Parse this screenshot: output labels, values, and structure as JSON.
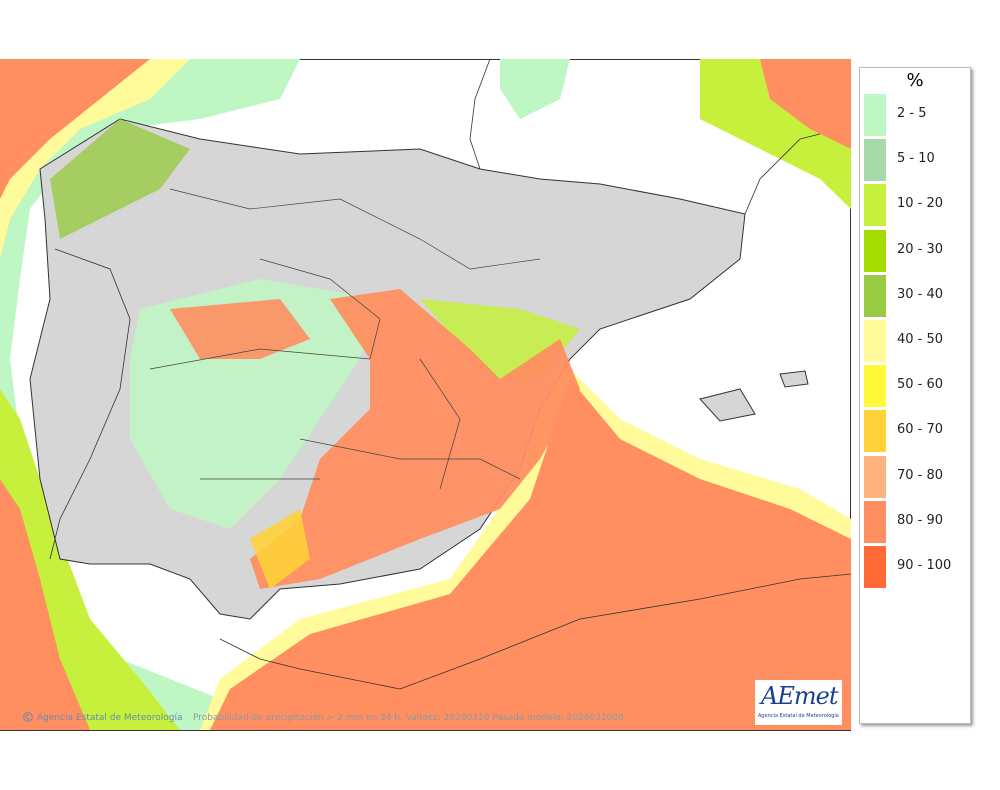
{
  "legend": {
    "title": "%",
    "items": [
      {
        "label": "2 - 5",
        "color": "#bff7c4"
      },
      {
        "label": "5 - 10",
        "color": "#a7d9a9"
      },
      {
        "label": "10 - 20",
        "color": "#c6f03c"
      },
      {
        "label": "20 - 30",
        "color": "#a5dc00"
      },
      {
        "label": "30 - 40",
        "color": "#9acb45"
      },
      {
        "label": "40 - 50",
        "color": "#fffb9b"
      },
      {
        "label": "50 - 60",
        "color": "#fff93a"
      },
      {
        "label": "60 - 70",
        "color": "#ffd23a"
      },
      {
        "label": "70 - 80",
        "color": "#ffb17e"
      },
      {
        "label": "80 - 90",
        "color": "#ff8f60"
      },
      {
        "label": "90 - 100",
        "color": "#ff6a36"
      }
    ]
  },
  "footer": {
    "organization": "Agencia Estatal de Meteorología",
    "description": "Probabilidad de precipitación > 2 mm en 24 h. Validez: 20260310 Pasada modelo: 2026031000"
  },
  "logo": {
    "wordmark": "AEmet",
    "subtitle": "Agencia Estatal de Meteorología"
  }
}
